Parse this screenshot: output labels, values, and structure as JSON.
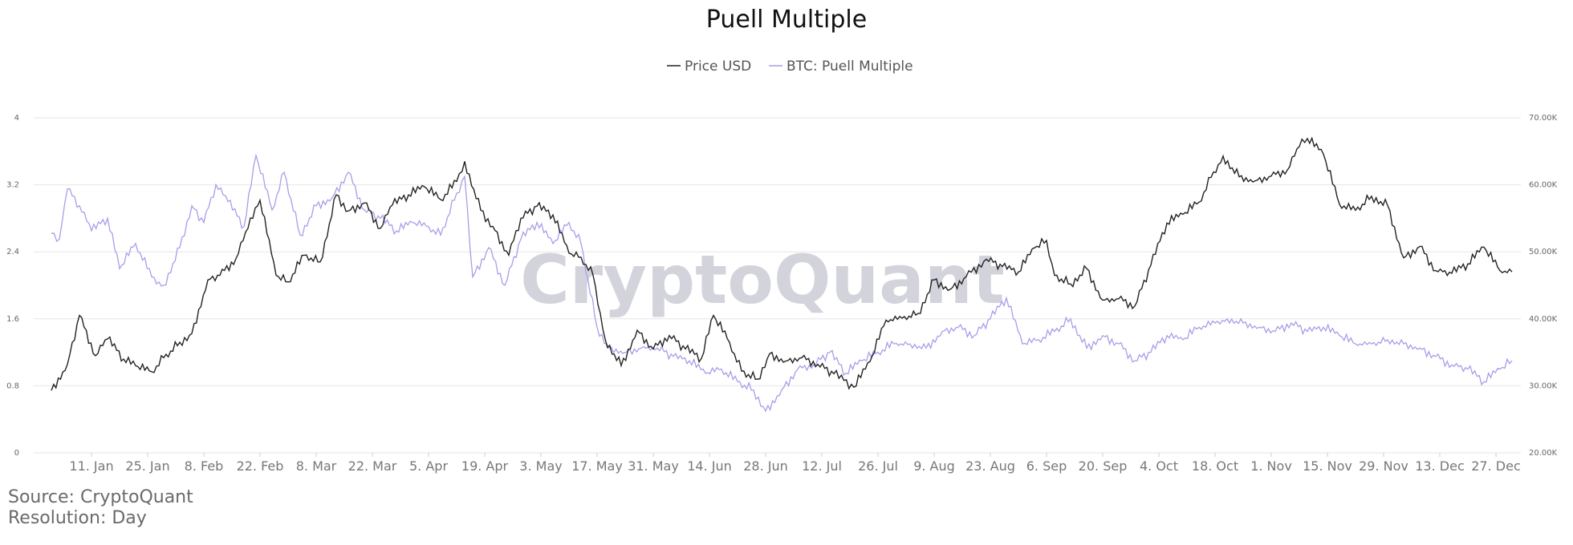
{
  "page": {
    "watermark": "CryptoQuant",
    "source": "Source: CryptoQuant",
    "resolution": "Resolution: Day"
  },
  "colors": {
    "price": "#222222",
    "puell": "#a99cea",
    "grid": "#e6e6e6"
  },
  "chart_data": {
    "type": "line",
    "title": "Puell Multiple",
    "legend_placement": "top-center",
    "grid": true,
    "x_type": "date",
    "x_range": [
      "2021-01-01",
      "2021-12-31"
    ],
    "x_ticks": [
      "11. Jan",
      "25. Jan",
      "8. Feb",
      "22. Feb",
      "8. Mar",
      "22. Mar",
      "5. Apr",
      "19. Apr",
      "3. May",
      "17. May",
      "31. May",
      "14. Jun",
      "28. Jun",
      "12. Jul",
      "26. Jul",
      "9. Aug",
      "23. Aug",
      "6. Sep",
      "20. Sep",
      "4. Oct",
      "18. Oct",
      "1. Nov",
      "15. Nov",
      "29. Nov",
      "13. Dec",
      "27. Dec"
    ],
    "x_tick_dates": [
      "2021-01-11",
      "2021-01-25",
      "2021-02-08",
      "2021-02-22",
      "2021-03-08",
      "2021-03-22",
      "2021-04-05",
      "2021-04-19",
      "2021-05-03",
      "2021-05-17",
      "2021-05-31",
      "2021-06-14",
      "2021-06-28",
      "2021-07-12",
      "2021-07-26",
      "2021-08-09",
      "2021-08-23",
      "2021-09-06",
      "2021-09-20",
      "2021-10-04",
      "2021-10-18",
      "2021-11-01",
      "2021-11-15",
      "2021-11-29",
      "2021-12-13",
      "2021-12-27"
    ],
    "y_left": {
      "ylim": [
        0,
        4
      ],
      "ticks": [
        "0",
        "0.8",
        "1.6",
        "2.4",
        "3.2",
        "4"
      ],
      "tick_values": [
        0,
        0.8,
        1.6,
        2.4,
        3.2,
        4
      ]
    },
    "y_right": {
      "ylim": [
        20000,
        70000
      ],
      "ticks": [
        "20.00K",
        "30.00K",
        "40.00K",
        "50.00K",
        "60.00K",
        "70.00K"
      ],
      "tick_values": [
        20000,
        30000,
        40000,
        50000,
        60000,
        70000
      ]
    },
    "series": [
      {
        "name": "Price USD",
        "axis": "right",
        "x": [
          "2021-01-01",
          "2021-01-05",
          "2021-01-08",
          "2021-01-12",
          "2021-01-15",
          "2021-01-19",
          "2021-01-22",
          "2021-01-26",
          "2021-01-29",
          "2021-02-02",
          "2021-02-05",
          "2021-02-09",
          "2021-02-12",
          "2021-02-16",
          "2021-02-19",
          "2021-02-22",
          "2021-02-26",
          "2021-03-01",
          "2021-03-05",
          "2021-03-09",
          "2021-03-13",
          "2021-03-16",
          "2021-03-20",
          "2021-03-24",
          "2021-03-27",
          "2021-03-31",
          "2021-04-04",
          "2021-04-08",
          "2021-04-12",
          "2021-04-14",
          "2021-04-18",
          "2021-04-21",
          "2021-04-25",
          "2021-04-28",
          "2021-05-02",
          "2021-05-06",
          "2021-05-10",
          "2021-05-13",
          "2021-05-16",
          "2021-05-19",
          "2021-05-23",
          "2021-05-27",
          "2021-05-31",
          "2021-06-04",
          "2021-06-08",
          "2021-06-12",
          "2021-06-15",
          "2021-06-19",
          "2021-06-22",
          "2021-06-26",
          "2021-06-29",
          "2021-07-03",
          "2021-07-07",
          "2021-07-11",
          "2021-07-15",
          "2021-07-20",
          "2021-07-24",
          "2021-07-28",
          "2021-08-01",
          "2021-08-05",
          "2021-08-09",
          "2021-08-13",
          "2021-08-17",
          "2021-08-22",
          "2021-08-26",
          "2021-08-30",
          "2021-09-03",
          "2021-09-06",
          "2021-09-08",
          "2021-09-12",
          "2021-09-16",
          "2021-09-20",
          "2021-09-24",
          "2021-09-28",
          "2021-10-02",
          "2021-10-06",
          "2021-10-10",
          "2021-10-14",
          "2021-10-17",
          "2021-10-20",
          "2021-10-24",
          "2021-10-28",
          "2021-11-01",
          "2021-11-05",
          "2021-11-08",
          "2021-11-10",
          "2021-11-14",
          "2021-11-18",
          "2021-11-22",
          "2021-11-26",
          "2021-11-30",
          "2021-12-04",
          "2021-12-08",
          "2021-12-12",
          "2021-12-16",
          "2021-12-20",
          "2021-12-24",
          "2021-12-28",
          "2021-12-31"
        ],
        "values": [
          29300,
          33200,
          40500,
          34500,
          37000,
          34000,
          33000,
          32100,
          34200,
          36500,
          37800,
          45800,
          46500,
          49000,
          53500,
          57700,
          46500,
          45500,
          49500,
          48500,
          58500,
          56100,
          57300,
          53500,
          57000,
          58500,
          59700,
          57800,
          60500,
          63500,
          56200,
          53800,
          49500,
          55000,
          56800,
          55500,
          49800,
          49200,
          46500,
          37000,
          33000,
          38300,
          35500,
          37500,
          35500,
          34100,
          40500,
          36500,
          32200,
          31000,
          34800,
          33700,
          34200,
          33200,
          31800,
          29800,
          33600,
          39800,
          40100,
          40800,
          45800,
          44400,
          46300,
          48900,
          47800,
          47000,
          50600,
          51700,
          46500,
          45200,
          47500,
          42800,
          43000,
          41900,
          48000,
          54300,
          55600,
          57400,
          61100,
          64300,
          61200,
          60600,
          61300,
          62200,
          65700,
          66900,
          64600,
          57100,
          56200,
          58300,
          56900,
          49100,
          50800,
          47200,
          46800,
          48200,
          50700,
          47200,
          47000
        ],
        "note": null
      },
      {
        "name": "BTC: Puell Multiple",
        "axis": "left",
        "x": [
          "2021-01-01",
          "2021-01-03",
          "2021-01-05",
          "2021-01-08",
          "2021-01-11",
          "2021-01-15",
          "2021-01-18",
          "2021-01-22",
          "2021-01-26",
          "2021-01-29",
          "2021-02-02",
          "2021-02-05",
          "2021-02-08",
          "2021-02-11",
          "2021-02-14",
          "2021-02-18",
          "2021-02-21",
          "2021-02-25",
          "2021-02-28",
          "2021-03-04",
          "2021-03-08",
          "2021-03-12",
          "2021-03-16",
          "2021-03-20",
          "2021-03-24",
          "2021-03-28",
          "2021-04-01",
          "2021-04-05",
          "2021-04-08",
          "2021-04-12",
          "2021-04-14",
          "2021-04-16",
          "2021-04-20",
          "2021-04-24",
          "2021-04-28",
          "2021-05-02",
          "2021-05-06",
          "2021-05-10",
          "2021-05-13",
          "2021-05-17",
          "2021-05-20",
          "2021-05-24",
          "2021-05-28",
          "2021-06-01",
          "2021-06-05",
          "2021-06-09",
          "2021-06-13",
          "2021-06-17",
          "2021-06-21",
          "2021-06-25",
          "2021-06-28",
          "2021-07-02",
          "2021-07-06",
          "2021-07-10",
          "2021-07-14",
          "2021-07-18",
          "2021-07-22",
          "2021-07-26",
          "2021-07-30",
          "2021-08-03",
          "2021-08-07",
          "2021-08-11",
          "2021-08-15",
          "2021-08-19",
          "2021-08-23",
          "2021-08-27",
          "2021-08-31",
          "2021-09-04",
          "2021-09-08",
          "2021-09-12",
          "2021-09-16",
          "2021-09-20",
          "2021-09-24",
          "2021-09-28",
          "2021-10-02",
          "2021-10-06",
          "2021-10-10",
          "2021-10-14",
          "2021-10-18",
          "2021-10-21",
          "2021-10-25",
          "2021-10-29",
          "2021-11-02",
          "2021-11-06",
          "2021-11-10",
          "2021-11-14",
          "2021-11-18",
          "2021-11-22",
          "2021-11-26",
          "2021-11-30",
          "2021-12-04",
          "2021-12-08",
          "2021-12-12",
          "2021-12-16",
          "2021-12-20",
          "2021-12-24",
          "2021-12-28",
          "2021-12-31"
        ],
        "values": [
          2.62,
          2.55,
          3.15,
          2.95,
          2.65,
          2.8,
          2.2,
          2.5,
          2.1,
          2.0,
          2.45,
          2.95,
          2.75,
          3.2,
          3.0,
          2.7,
          3.55,
          2.9,
          3.35,
          2.6,
          2.95,
          3.05,
          3.35,
          2.9,
          2.8,
          2.65,
          2.75,
          2.7,
          2.6,
          3.1,
          3.3,
          2.1,
          2.45,
          2.0,
          2.55,
          2.75,
          2.5,
          2.75,
          2.5,
          1.5,
          1.25,
          1.2,
          1.25,
          1.25,
          1.15,
          1.1,
          0.95,
          1.0,
          0.85,
          0.75,
          0.5,
          0.75,
          1.0,
          1.05,
          1.2,
          0.95,
          1.1,
          1.2,
          1.3,
          1.3,
          1.25,
          1.45,
          1.5,
          1.4,
          1.6,
          1.85,
          1.3,
          1.35,
          1.45,
          1.6,
          1.25,
          1.4,
          1.3,
          1.1,
          1.2,
          1.4,
          1.35,
          1.5,
          1.55,
          1.6,
          1.55,
          1.5,
          1.45,
          1.55,
          1.45,
          1.5,
          1.4,
          1.3,
          1.3,
          1.35,
          1.3,
          1.25,
          1.15,
          1.05,
          1.0,
          0.85,
          1.0,
          1.1
        ]
      }
    ]
  }
}
